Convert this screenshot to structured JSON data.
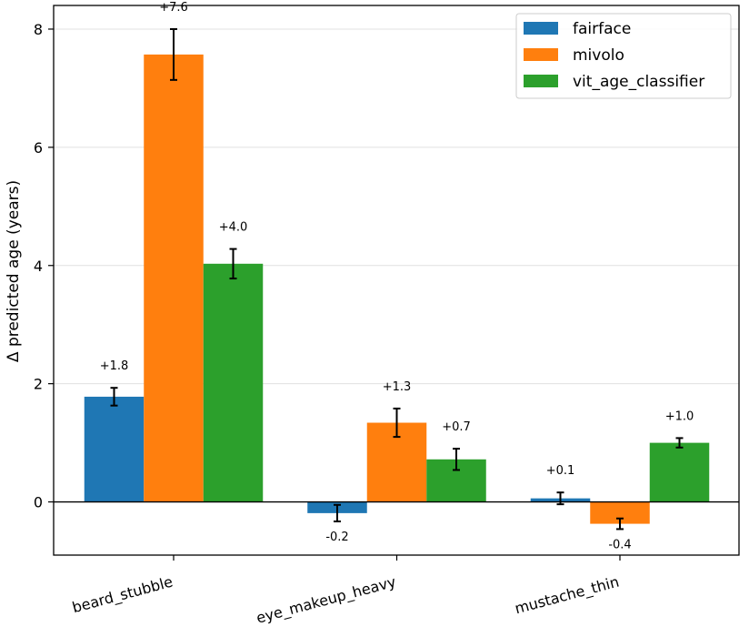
{
  "chart_data": {
    "type": "bar",
    "categories": [
      "beard_stubble",
      "eye_makeup_heavy",
      "mustache_thin"
    ],
    "series": [
      {
        "name": "fairface",
        "color": "#1f77b4",
        "values": [
          1.78,
          -0.19,
          0.06
        ],
        "errors": [
          0.15,
          0.14,
          0.1
        ],
        "labels": [
          "+1.8",
          "-0.2",
          "+0.1"
        ]
      },
      {
        "name": "mivolo",
        "color": "#ff7f0e",
        "values": [
          7.57,
          1.34,
          -0.37
        ],
        "errors": [
          0.43,
          0.24,
          0.09
        ],
        "labels": [
          "+7.6",
          "+1.3",
          "-0.4"
        ]
      },
      {
        "name": "vit_age_classifier",
        "color": "#2ca02c",
        "values": [
          4.03,
          0.72,
          1.0
        ],
        "errors": [
          0.25,
          0.18,
          0.08
        ],
        "labels": [
          "+4.0",
          "+0.7",
          "+1.0"
        ]
      }
    ],
    "ylabel": "Δ predicted age (years)",
    "xlabel": "",
    "title": "",
    "ylim": [
      -0.9,
      8.4
    ],
    "yticks": [
      0,
      2,
      4,
      6,
      8
    ],
    "grid": "horizontal",
    "zero_line": true,
    "legend_position": "top-right",
    "error_bars": true
  }
}
